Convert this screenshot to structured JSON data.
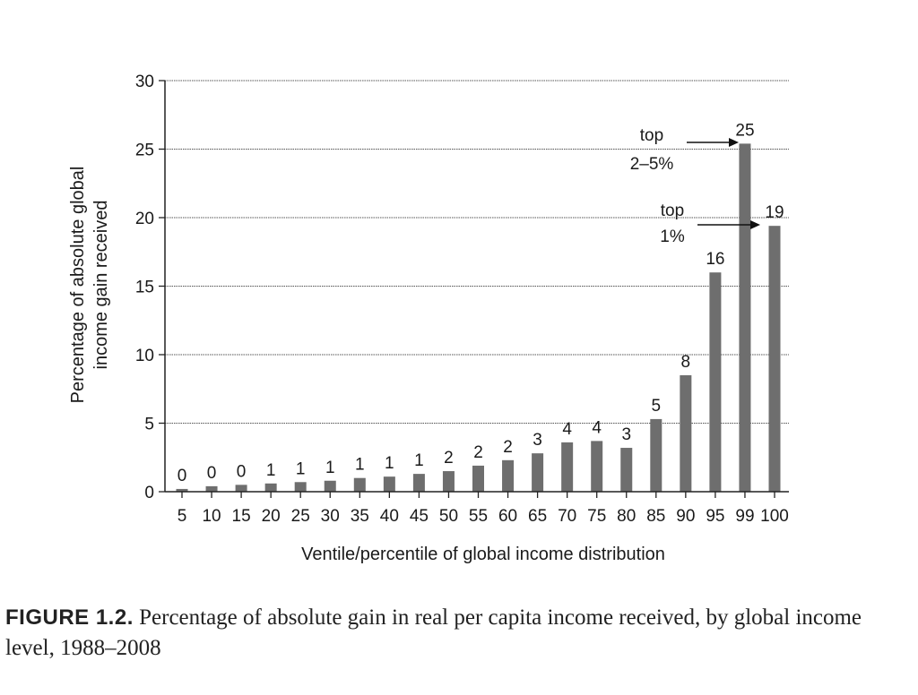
{
  "chart_data": {
    "type": "bar",
    "categories": [
      "5",
      "10",
      "15",
      "20",
      "25",
      "30",
      "35",
      "40",
      "45",
      "50",
      "55",
      "60",
      "65",
      "70",
      "75",
      "80",
      "85",
      "90",
      "95",
      "99",
      "100"
    ],
    "values": [
      0.2,
      0.4,
      0.5,
      0.6,
      0.7,
      0.8,
      1.0,
      1.1,
      1.3,
      1.5,
      1.9,
      2.3,
      2.8,
      3.6,
      3.7,
      3.2,
      5.3,
      8.5,
      16.0,
      25.4,
      19.4
    ],
    "data_labels": [
      "0",
      "0",
      "0",
      "1",
      "1",
      "1",
      "1",
      "1",
      "1",
      "2",
      "2",
      "2",
      "3",
      "4",
      "4",
      "3",
      "5",
      "8",
      "16",
      "25",
      "19"
    ],
    "ylabel_line1": "Percentage of absolute global",
    "ylabel_line2": "income gain received",
    "xlabel": "Ventile/percentile of global income distribution",
    "ylim": [
      0,
      30
    ],
    "yticks": [
      0,
      5,
      10,
      15,
      20,
      25,
      30
    ],
    "grid": true,
    "bar_color": "#6e6e6e",
    "annotations": [
      {
        "line1": "top",
        "line2": "2–5%",
        "target_category": "99"
      },
      {
        "line1": "top",
        "line2": "1%",
        "target_category": "100"
      }
    ]
  },
  "caption": {
    "figure_label": "FIGURE 1.2.",
    "text": "Percentage of absolute gain in real per capita income received, by global income level, 1988–2008"
  }
}
